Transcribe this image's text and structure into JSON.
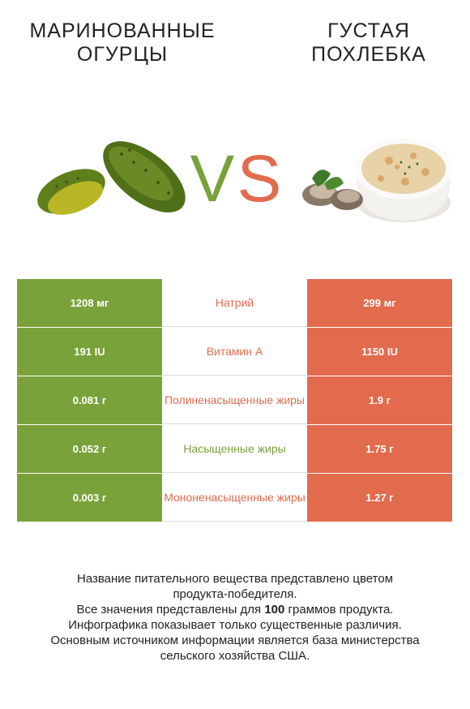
{
  "left_food": {
    "line1": "МАРИНОВАННЫЕ",
    "line2": "ОГУРЦЫ"
  },
  "right_food": {
    "line1": "ГУСТАЯ",
    "line2": "ПОХЛЕБКА"
  },
  "vs": {
    "v": "V",
    "s": "S"
  },
  "colors": {
    "left": "#7aa23a",
    "right": "#e26b4e",
    "vs_v": "#7aa23a",
    "vs_s": "#e26b4e"
  },
  "chart_data": {
    "type": "table",
    "columns": [
      "МАРИНОВАННЫЕ ОГУРЦЫ",
      "",
      "ГУСТАЯ ПОХЛЕБКА"
    ],
    "rows": [
      {
        "nutrient": "Натрий",
        "left": "1208 мг",
        "right": "299 мг",
        "winner": "right"
      },
      {
        "nutrient": "Витамин А",
        "left": "191 IU",
        "right": "1150 IU",
        "winner": "right"
      },
      {
        "nutrient": "Полиненасыщенные жиры",
        "left": "0.081 г",
        "right": "1.9 г",
        "winner": "right"
      },
      {
        "nutrient": "Насыщенные жиры",
        "left": "0.052 г",
        "right": "1.75 г",
        "winner": "left"
      },
      {
        "nutrient": "Мононенасыщенные жиры",
        "left": "0.003 г",
        "right": "1.27 г",
        "winner": "right"
      }
    ]
  },
  "footnote": {
    "line1": "Название питательного вещества представлено цветом",
    "line2": "продукта-победителя.",
    "line3_pre": "Все значения представлены для ",
    "line3_bold": "100",
    "line3_post": " граммов продукта.",
    "line4": "Инфографика показывает только существенные различия.",
    "line5": "Основным источником информации является база министерства",
    "line6": "сельского хозяйства США."
  }
}
